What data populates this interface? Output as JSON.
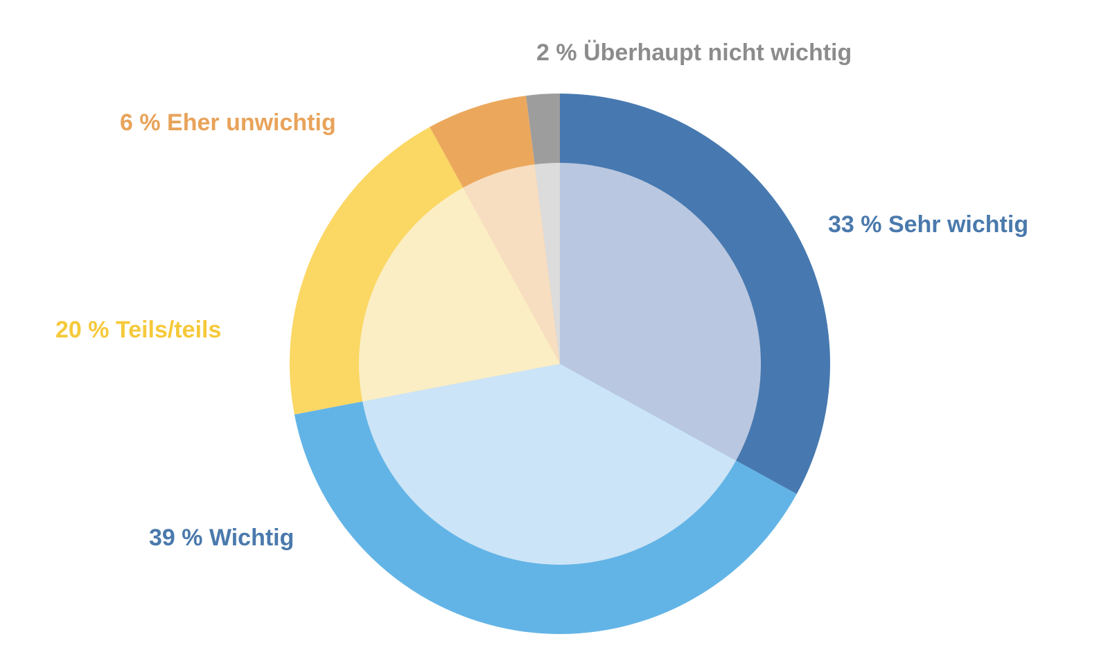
{
  "chart_data": {
    "type": "pie",
    "slices": [
      {
        "label": "Sehr wichtig",
        "value": 33,
        "text": "33 % Sehr wichtig",
        "color": "#4779B0",
        "inner_color": "#B9C7E0",
        "label_color": "#4A79AC"
      },
      {
        "label": "Wichtig",
        "value": 39,
        "text": "39 % Wichtig",
        "color": "#63B4E6",
        "inner_color": "#CCE4F7",
        "label_color": "#4A79AC"
      },
      {
        "label": "Teils/teils",
        "value": 20,
        "text": "20 % Teils/teils",
        "color": "#FBD764",
        "inner_color": "#FBEEC5",
        "label_color": "#F5C93A"
      },
      {
        "label": "Eher unwichtig",
        "value": 6,
        "text": "6 % Eher unwichtig",
        "color": "#EBA85C",
        "inner_color": "#F8DEC1",
        "label_color": "#E8A35A"
      },
      {
        "label": "Überhaupt nicht wichtig",
        "value": 2,
        "text": "2 % Überhaupt nicht wichtig",
        "color": "#9D9D9D",
        "inner_color": "#DCDCDC",
        "label_color": "#8C8C8C"
      }
    ]
  }
}
